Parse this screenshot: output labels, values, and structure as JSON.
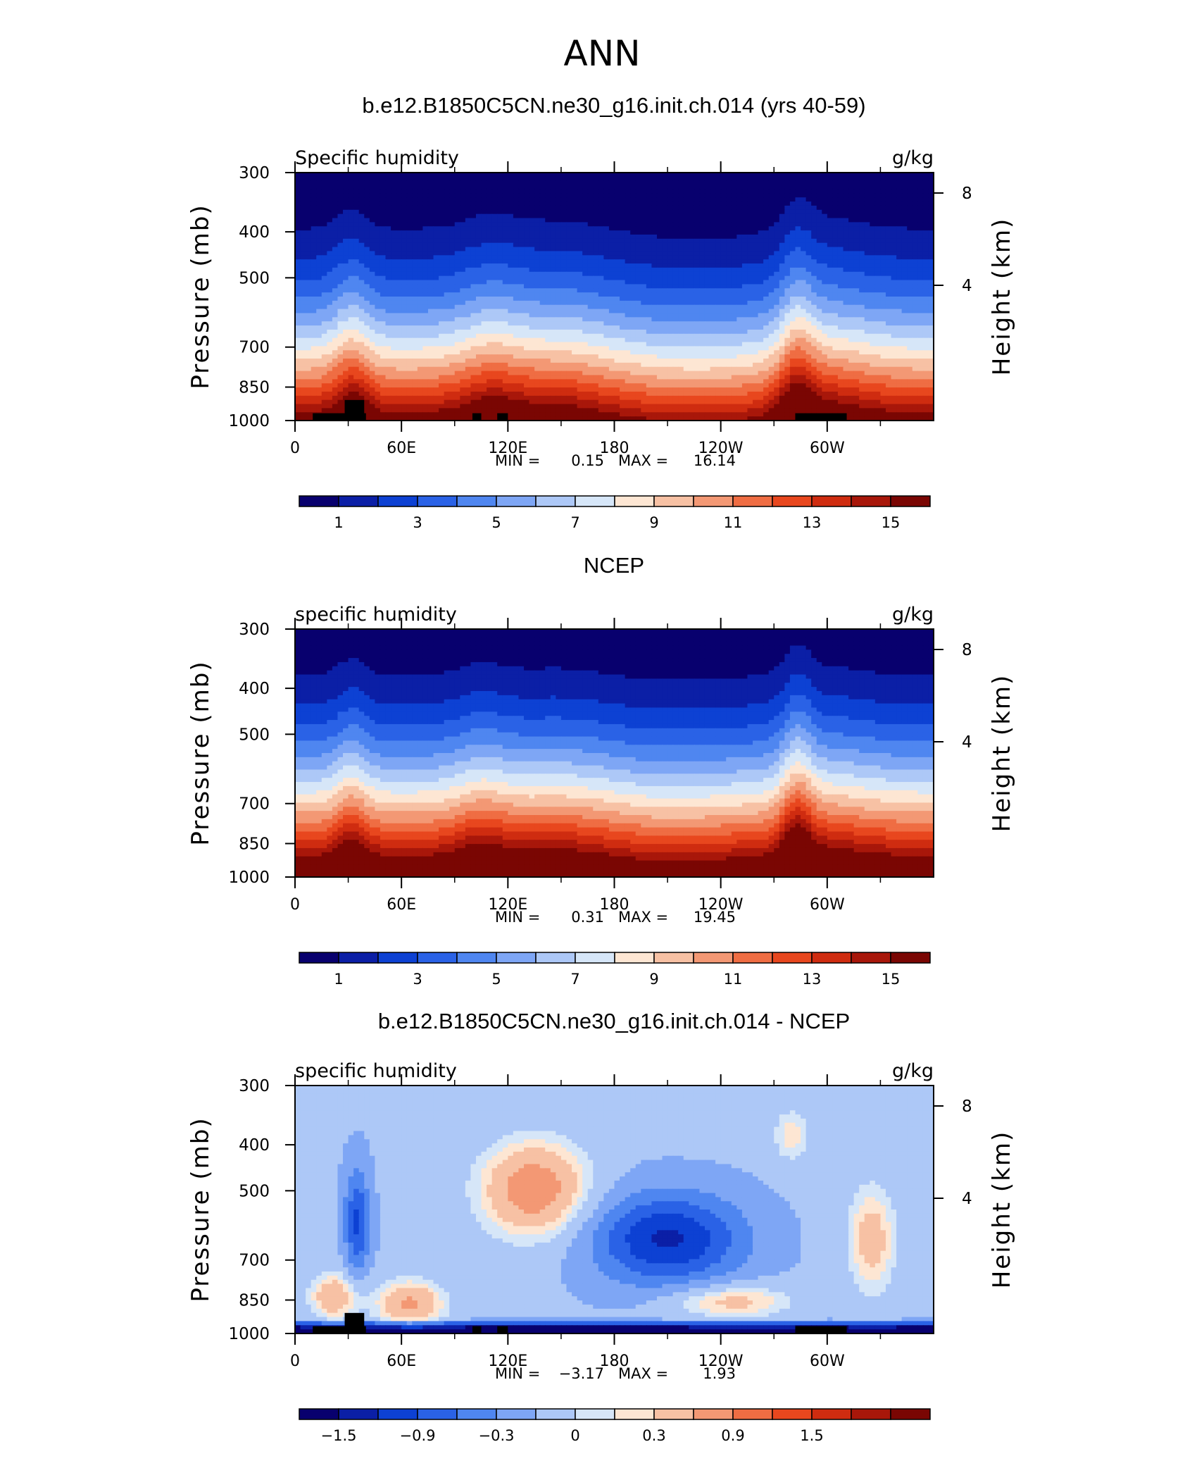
{
  "page": {
    "title": "ANN"
  },
  "chart_data": [
    {
      "type": "heatmap",
      "title": "b.e12.B1850C5CN.ne30_g16.init.ch.014 (yrs 40-59)",
      "variable_label": "Specific humidity",
      "units_label": "g/kg",
      "xlabel": "",
      "ylabel": "Pressure (mb)",
      "ylabel_right": "Height (km)",
      "x_ticks": [
        "0",
        "60E",
        "120E",
        "180",
        "120W",
        "60W"
      ],
      "y_ticks": [
        "300",
        "400",
        "500",
        "700",
        "850",
        "1000"
      ],
      "y_right_ticks": [
        "8",
        "4"
      ],
      "ylim": [
        300,
        1000
      ],
      "min_label": "MIN =",
      "min": "0.15",
      "max_label": "MAX =",
      "max": "16.14",
      "colorbar": {
        "levels": [
          1,
          2,
          3,
          4,
          5,
          6,
          7,
          8,
          9,
          10,
          11,
          12,
          13,
          14,
          15
        ],
        "tick_labels": [
          "1",
          "3",
          "5",
          "7",
          "9",
          "11",
          "13",
          "15"
        ]
      },
      "topography": true
    },
    {
      "type": "heatmap",
      "title": "NCEP",
      "variable_label": "specific humidity",
      "units_label": "g/kg",
      "xlabel": "",
      "ylabel": "Pressure (mb)",
      "ylabel_right": "Height (km)",
      "x_ticks": [
        "0",
        "60E",
        "120E",
        "180",
        "120W",
        "60W"
      ],
      "y_ticks": [
        "300",
        "400",
        "500",
        "700",
        "850",
        "1000"
      ],
      "y_right_ticks": [
        "8",
        "4"
      ],
      "ylim": [
        300,
        1000
      ],
      "min_label": "MIN =",
      "min": "0.31",
      "max_label": "MAX =",
      "max": "19.45",
      "colorbar": {
        "levels": [
          1,
          2,
          3,
          4,
          5,
          6,
          7,
          8,
          9,
          10,
          11,
          12,
          13,
          14,
          15
        ],
        "tick_labels": [
          "1",
          "3",
          "5",
          "7",
          "9",
          "11",
          "13",
          "15"
        ]
      },
      "topography": false
    },
    {
      "type": "heatmap",
      "title": "b.e12.B1850C5CN.ne30_g16.init.ch.014 - NCEP",
      "variable_label": "specific humidity",
      "units_label": "g/kg",
      "xlabel": "",
      "ylabel": "Pressure (mb)",
      "ylabel_right": "Height (km)",
      "x_ticks": [
        "0",
        "60E",
        "120E",
        "180",
        "120W",
        "60W"
      ],
      "y_ticks": [
        "300",
        "400",
        "500",
        "700",
        "850",
        "1000"
      ],
      "y_right_ticks": [
        "8",
        "4"
      ],
      "ylim": [
        300,
        1000
      ],
      "min_label": "MIN =",
      "min": "−3.17",
      "max_label": "MAX =",
      "max": "1.93",
      "colorbar": {
        "levels": [
          -1.8,
          -1.5,
          -1.2,
          -0.9,
          -0.6,
          -0.3,
          0,
          0.15,
          0.3,
          0.6,
          0.9,
          1.2,
          1.5,
          1.8
        ],
        "tick_labels": [
          "−1.5",
          "−0.9",
          "−0.3",
          "0",
          "0.3",
          "0.9",
          "1.5"
        ]
      },
      "topography": true
    }
  ],
  "colors": {
    "palette": [
      "#08006e",
      "#0b1fa6",
      "#0d41d3",
      "#2a62e6",
      "#4f86f0",
      "#7ea6f5",
      "#adc8f7",
      "#d6e6f8",
      "#fde6d3",
      "#f7c1a4",
      "#f39874",
      "#ef6d43",
      "#e8471e",
      "#cf2c10",
      "#a8170a",
      "#7a0603"
    ],
    "topography": "#000000"
  }
}
